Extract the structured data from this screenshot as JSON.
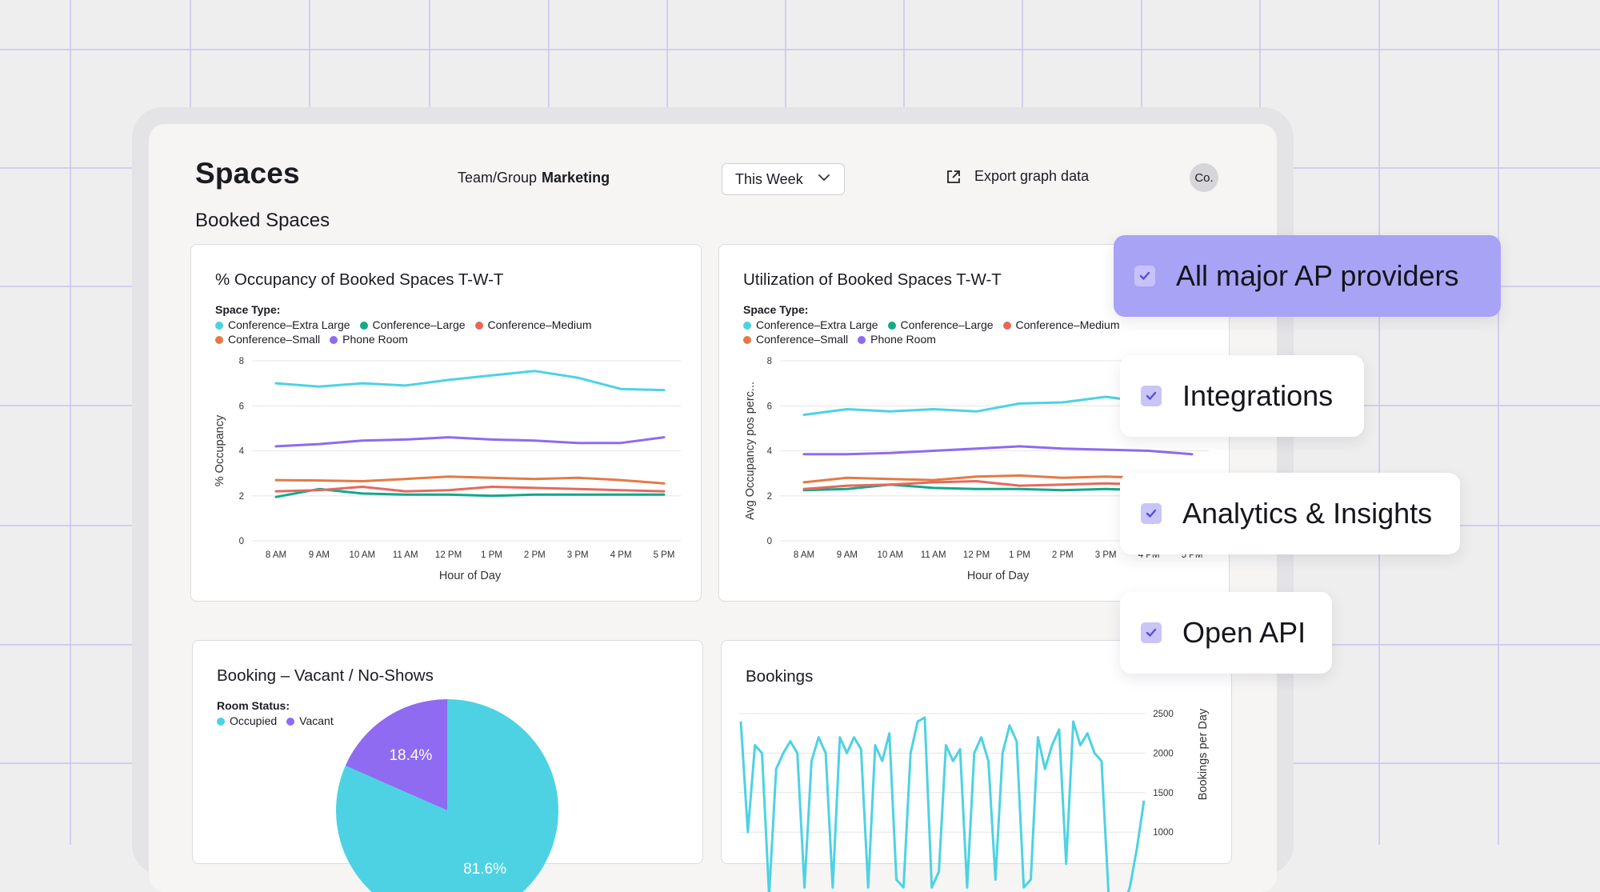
{
  "header": {
    "title": "Spaces",
    "team_label": "Team/Group",
    "team_value": "Marketing",
    "period": "This Week",
    "export_label": "Export graph data",
    "avatar": "Co."
  },
  "section_title": "Booked Spaces",
  "colors": {
    "cyan": "#4dd2e3",
    "green": "#12a88a",
    "red": "#e4695f",
    "orange": "#e37a45",
    "purple": "#8e6bf0",
    "accent_pill": "#a8a3f5"
  },
  "legend_space_types": {
    "title": "Space Type:",
    "items": [
      "Conference–Extra Large",
      "Conference–Large",
      "Conference–Medium",
      "Conference–Small",
      "Phone Room"
    ]
  },
  "features": [
    {
      "label": "All major AP providers",
      "checked": true,
      "active": true
    },
    {
      "label": "Integrations",
      "checked": true,
      "active": false
    },
    {
      "label": "Analytics & Insights",
      "checked": true,
      "active": false
    },
    {
      "label": "Open API",
      "checked": true,
      "active": false
    }
  ],
  "chart_data": [
    {
      "type": "line",
      "title": "% Occupancy of Booked Spaces  T-W-T",
      "xlabel": "Hour of Day",
      "ylabel": "% Occupancy",
      "categories": [
        "8 AM",
        "9 AM",
        "10 AM",
        "11 AM",
        "12 PM",
        "1 PM",
        "2 PM",
        "3 PM",
        "4 PM",
        "5 PM"
      ],
      "ylim": [
        0,
        8
      ],
      "yticks": [
        "0",
        "2",
        "4",
        "6",
        "8"
      ],
      "grid": true,
      "legend_position": "top-left",
      "series": [
        {
          "name": "Conference–Extra Large",
          "color": "#4dd2e3",
          "values": [
            7.0,
            6.85,
            7.0,
            6.9,
            7.15,
            7.35,
            7.55,
            7.25,
            6.75,
            6.7
          ]
        },
        {
          "name": "Conference–Large",
          "color": "#12a88a",
          "values": [
            1.95,
            2.3,
            2.1,
            2.05,
            2.05,
            2.0,
            2.05,
            2.05,
            2.05,
            2.05
          ]
        },
        {
          "name": "Conference–Medium",
          "color": "#e4695f",
          "values": [
            2.2,
            2.25,
            2.4,
            2.2,
            2.25,
            2.4,
            2.35,
            2.3,
            2.25,
            2.2
          ]
        },
        {
          "name": "Conference–Small",
          "color": "#e37a45",
          "values": [
            2.7,
            2.68,
            2.65,
            2.75,
            2.85,
            2.8,
            2.75,
            2.8,
            2.7,
            2.55
          ]
        },
        {
          "name": "Phone Room",
          "color": "#8e6bf0",
          "values": [
            4.2,
            4.3,
            4.45,
            4.5,
            4.6,
            4.5,
            4.45,
            4.35,
            4.35,
            4.6
          ]
        }
      ]
    },
    {
      "type": "line",
      "title": "Utilization of Booked Spaces  T-W-T",
      "xlabel": "Hour of Day",
      "ylabel": "Avg Occupancy pos perc...",
      "categories": [
        "8 AM",
        "9 AM",
        "10 AM",
        "11 AM",
        "12 PM",
        "1 PM",
        "2 PM",
        "3 PM",
        "4 PM",
        "5 PM"
      ],
      "ylim": [
        0,
        8
      ],
      "yticks": [
        "0",
        "2",
        "4",
        "6",
        "8"
      ],
      "grid": true,
      "legend_position": "top-left",
      "series": [
        {
          "name": "Conference–Extra Large",
          "color": "#4dd2e3",
          "values": [
            5.6,
            5.85,
            5.75,
            5.85,
            5.75,
            6.1,
            6.15,
            6.4,
            6.15,
            5.7
          ]
        },
        {
          "name": "Conference–Large",
          "color": "#12a88a",
          "values": [
            2.25,
            2.3,
            2.5,
            2.35,
            2.3,
            2.3,
            2.25,
            2.3,
            2.25,
            2.3
          ]
        },
        {
          "name": "Conference–Medium",
          "color": "#e4695f",
          "values": [
            2.3,
            2.45,
            2.5,
            2.6,
            2.65,
            2.45,
            2.5,
            2.55,
            2.5,
            2.45
          ]
        },
        {
          "name": "Conference–Small",
          "color": "#e37a45",
          "values": [
            2.6,
            2.8,
            2.75,
            2.7,
            2.85,
            2.9,
            2.8,
            2.85,
            2.8,
            2.75
          ]
        },
        {
          "name": "Phone Room",
          "color": "#8e6bf0",
          "values": [
            3.85,
            3.85,
            3.9,
            4.0,
            4.1,
            4.2,
            4.1,
            4.05,
            4.0,
            3.85
          ]
        }
      ]
    },
    {
      "type": "pie",
      "title": "Booking –  Vacant / No-Shows",
      "legend_title": "Room Status:",
      "legend_position": "top-left",
      "slices": [
        {
          "name": "Occupied",
          "value": 81.6,
          "label": "81.6%",
          "color": "#4dd2e3"
        },
        {
          "name": "Vacant",
          "value": 18.4,
          "label": "18.4%",
          "color": "#8e6bf0"
        }
      ]
    },
    {
      "type": "line",
      "title": "Bookings",
      "ylabel": "Bookings per Day",
      "yaxis_position": "right",
      "yticks": [
        "1000",
        "1500",
        "2000",
        "2500"
      ],
      "ylim": [
        0,
        2600
      ],
      "grid": true,
      "series": [
        {
          "color": "#4dd2e3",
          "values": [
            2400,
            1000,
            2100,
            2000,
            200,
            1800,
            2000,
            2150,
            2000,
            300,
            1900,
            2200,
            2000,
            300,
            2200,
            2000,
            2200,
            2050,
            300,
            2100,
            1900,
            2250,
            400,
            300,
            2000,
            2400,
            2450,
            300,
            500,
            2100,
            1900,
            2050,
            300,
            2000,
            2200,
            1900,
            400,
            2000,
            2350,
            2150,
            300,
            400,
            2200,
            1800,
            2100,
            2300,
            600,
            2400,
            2100,
            2250,
            2000,
            1900,
            200,
            50,
            50,
            300,
            800,
            1400
          ]
        }
      ]
    }
  ]
}
